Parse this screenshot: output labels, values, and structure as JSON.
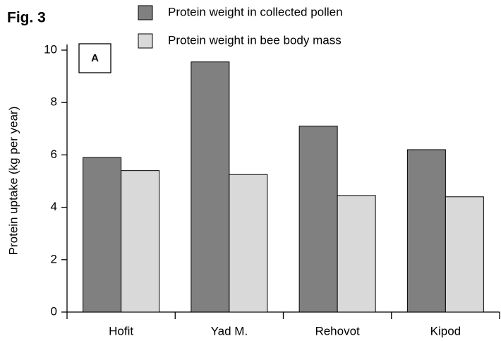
{
  "chart_data": {
    "type": "bar",
    "title": "Fig. 3",
    "panel_label": "A",
    "y_label": "Protein uptake (kg per year)",
    "categories": [
      "Hofit",
      "Yad M.",
      "Rehovot",
      "Kipod"
    ],
    "series": [
      {
        "name": "Protein weight in collected pollen",
        "color": "#808080",
        "values": [
          5.9,
          9.55,
          7.1,
          6.2
        ]
      },
      {
        "name": "Protein weight in bee body mass",
        "color": "#d9d9d9",
        "values": [
          5.4,
          5.25,
          4.45,
          4.4
        ]
      }
    ],
    "ylim": [
      0,
      10
    ],
    "yticks": [
      0,
      2,
      4,
      6,
      8,
      10
    ]
  }
}
